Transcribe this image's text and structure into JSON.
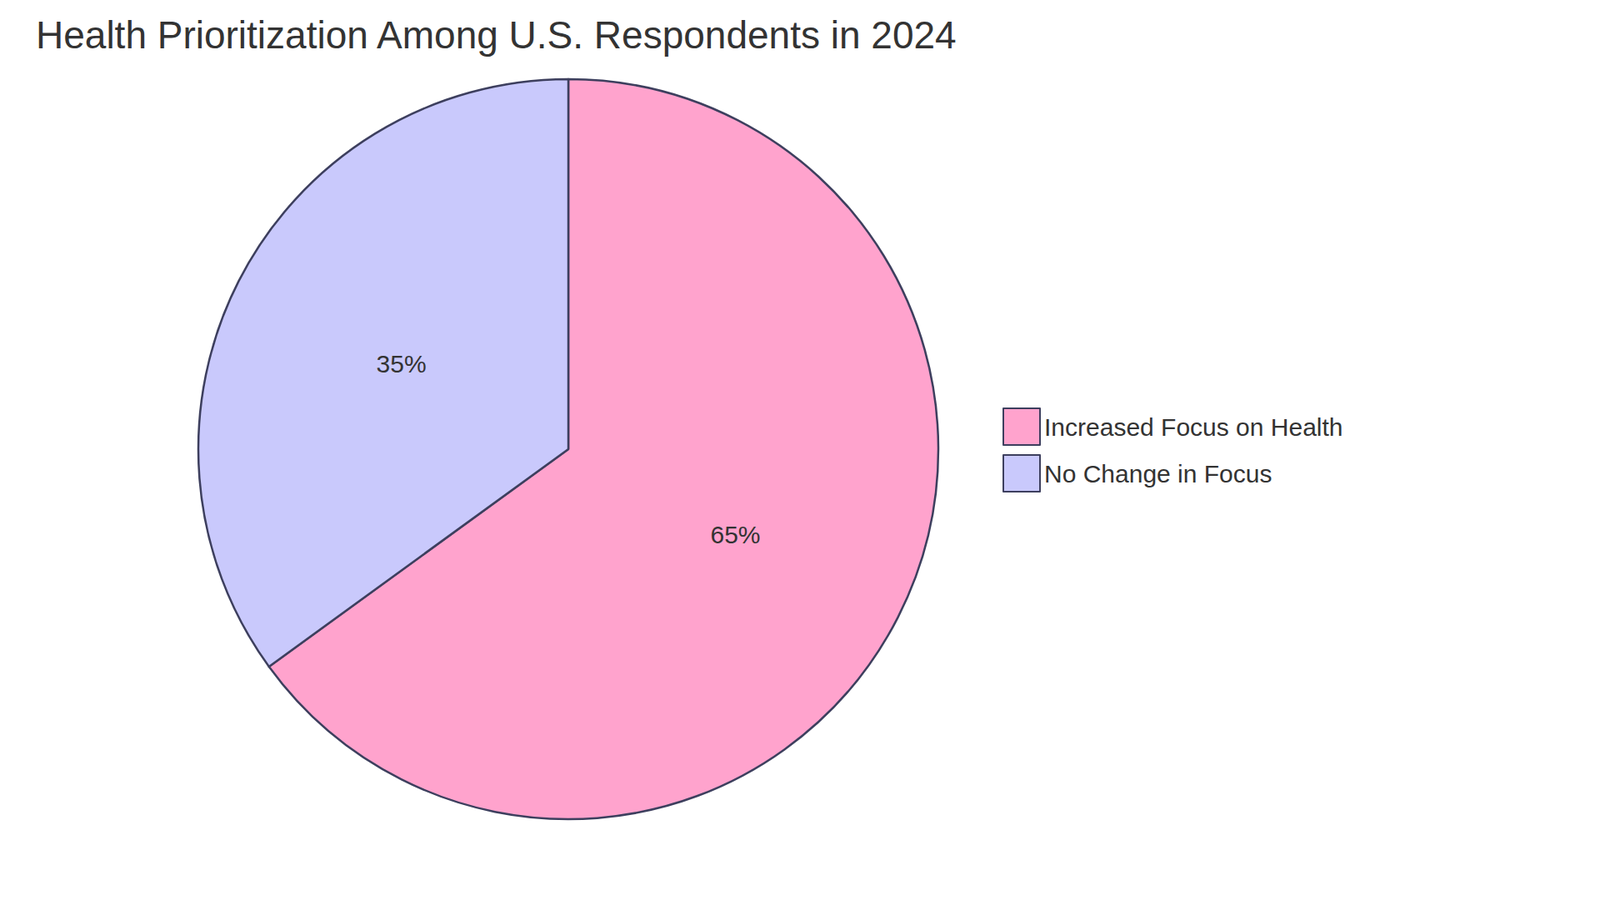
{
  "chart_data": {
    "type": "pie",
    "title": "Health Prioritization Among U.S. Respondents in 2024",
    "categories": [
      "Increased Focus on Health",
      "No Change in Focus"
    ],
    "values": [
      65,
      35
    ],
    "value_labels": [
      "65%",
      "35%"
    ],
    "colors": [
      "#ffa3cd",
      "#c9c9fc"
    ],
    "data_labels": true,
    "legend": "right"
  }
}
